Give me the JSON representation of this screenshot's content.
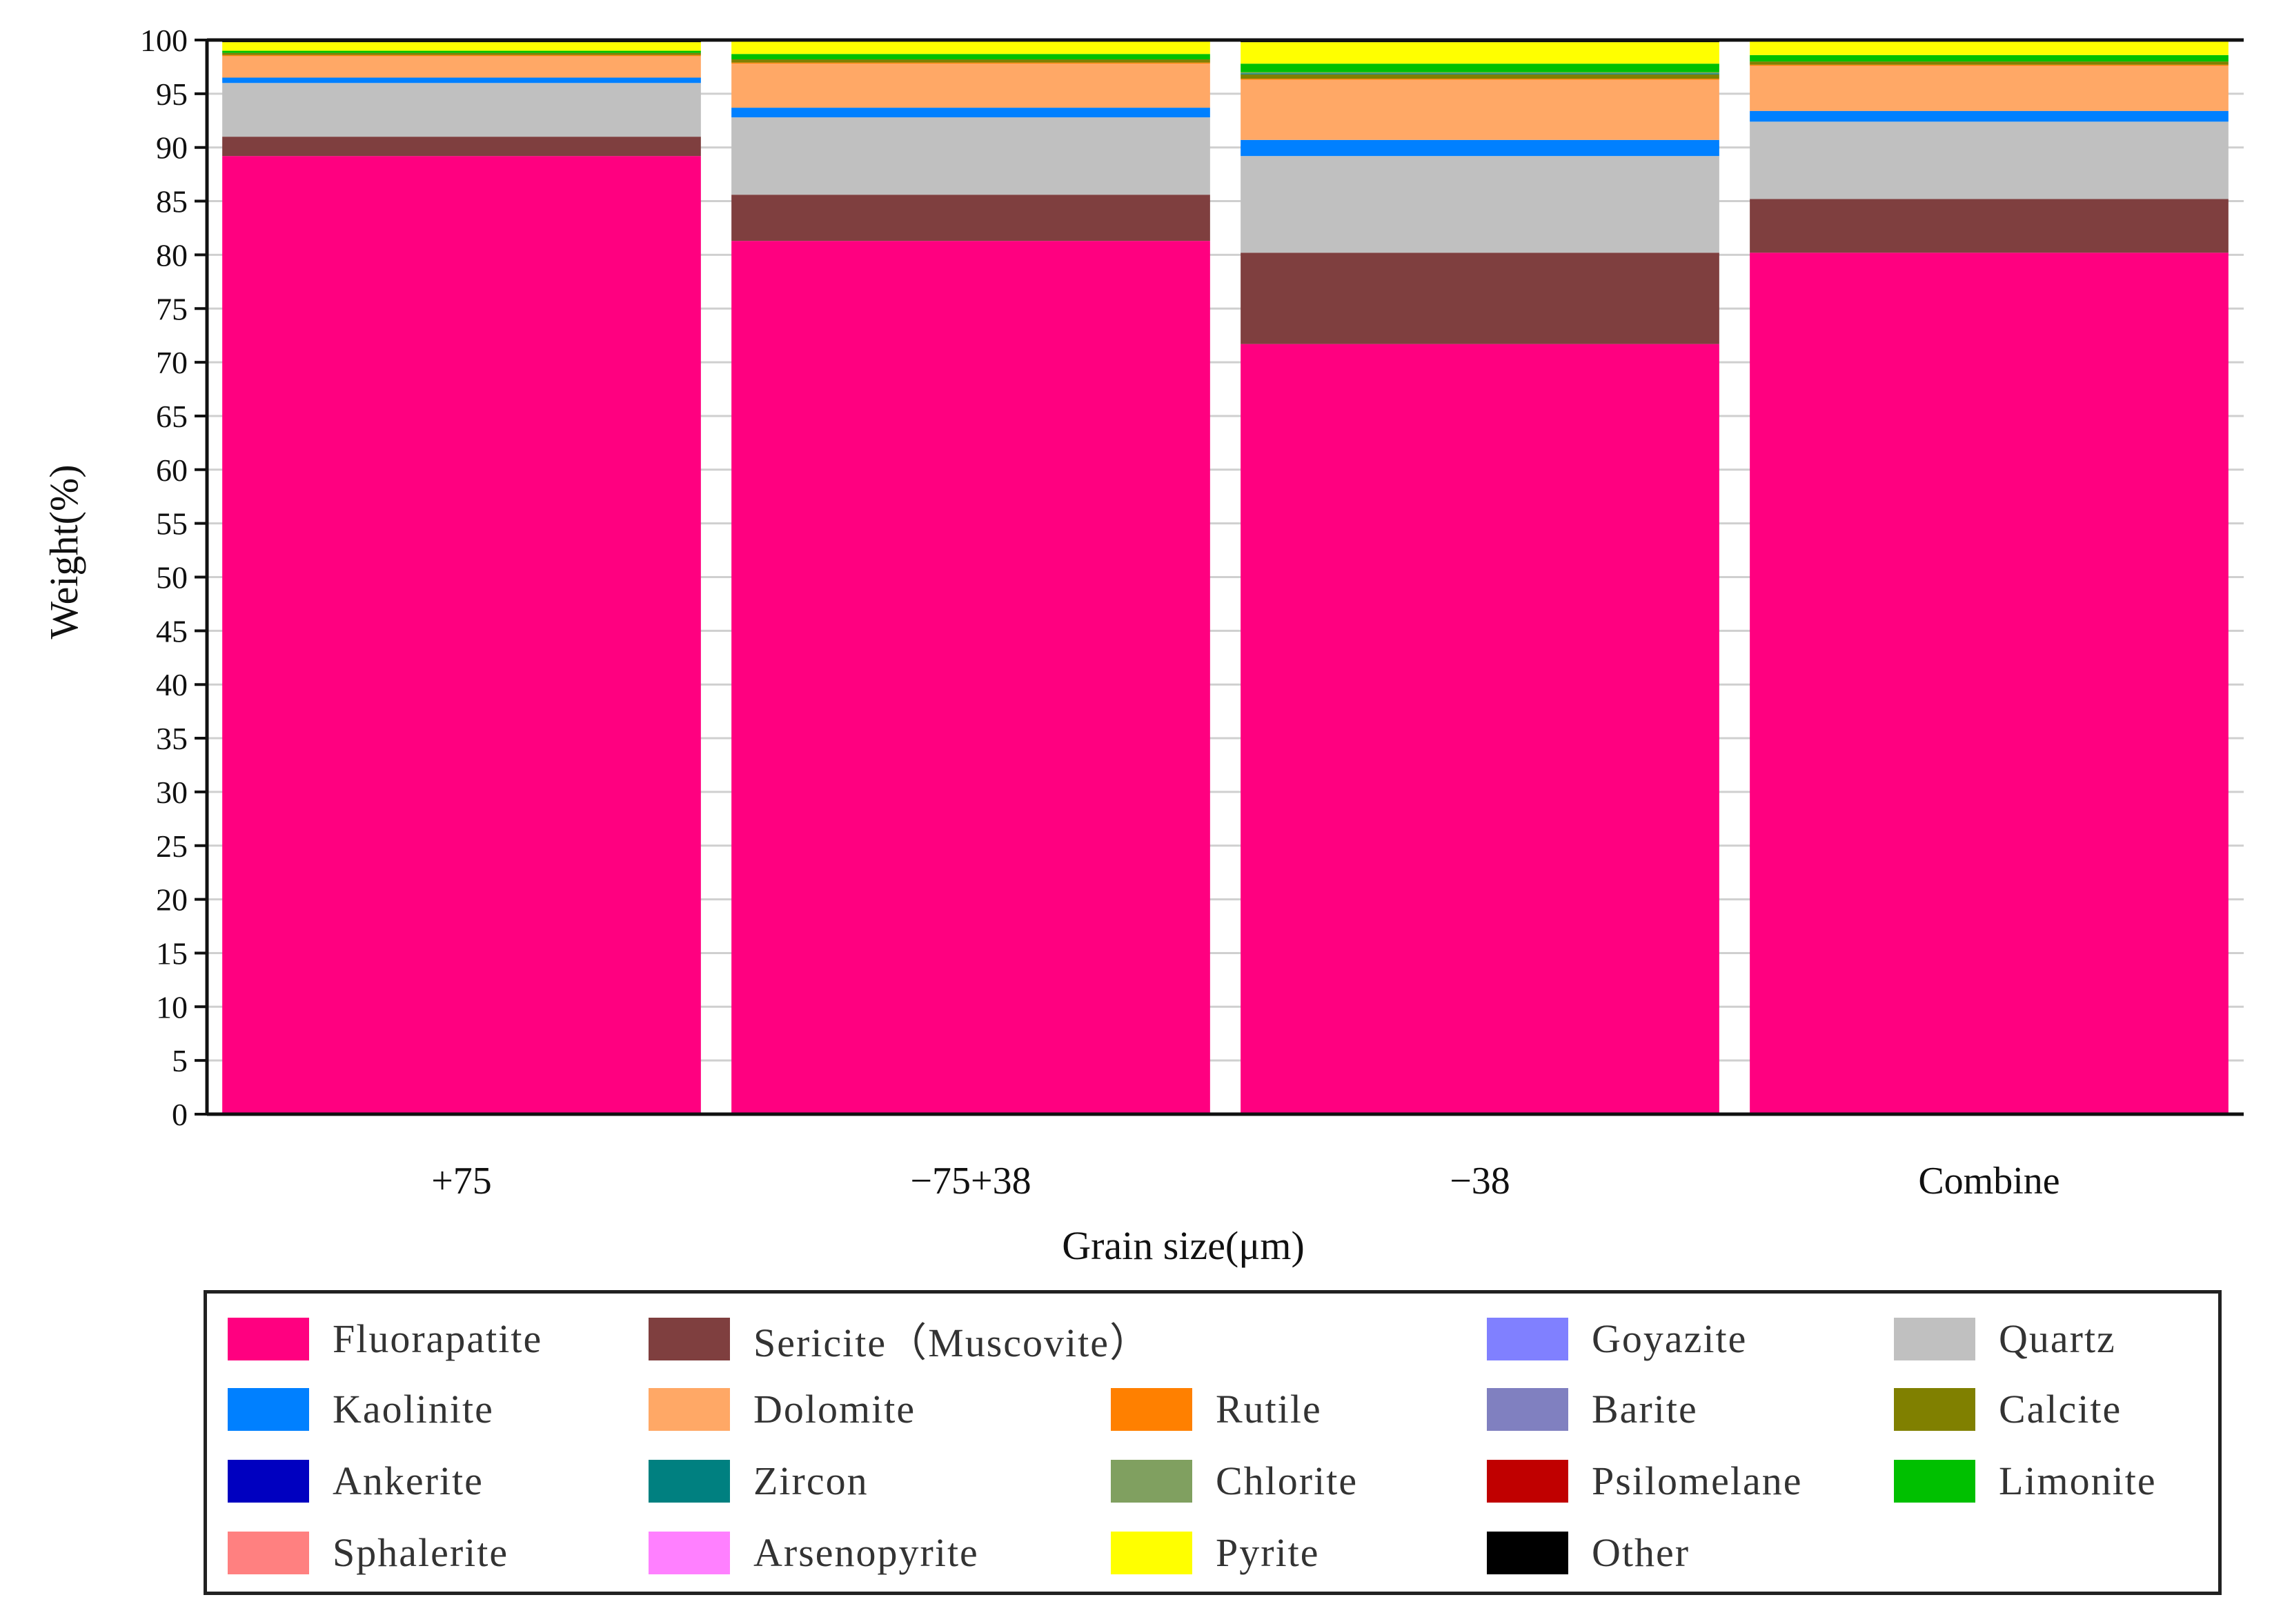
{
  "chart_data": {
    "type": "bar",
    "stacked": true,
    "xlabel": "Grain size(μm)",
    "ylabel": "Weight(%)",
    "ylim": [
      0,
      100
    ],
    "yticks": [
      0,
      5,
      10,
      15,
      20,
      25,
      30,
      35,
      40,
      45,
      50,
      55,
      60,
      65,
      70,
      75,
      80,
      85,
      90,
      95,
      100
    ],
    "grid": true,
    "legend_position": "bottom",
    "categories": [
      "+75",
      "−75+38",
      "−38",
      "Combine"
    ],
    "series": [
      {
        "name": "Fluorapatite",
        "color": "#FF0080",
        "values": [
          89.2,
          81.3,
          71.7,
          80.2
        ]
      },
      {
        "name": "Sericite（Muscovite）",
        "color": "#7F3F3F",
        "values": [
          1.8,
          4.3,
          8.5,
          5.0
        ]
      },
      {
        "name": "Goyazite",
        "color": "#8080FF",
        "values": [
          0.0,
          0.0,
          0.0,
          0.0
        ]
      },
      {
        "name": "Quartz",
        "color": "#C0C0C0",
        "values": [
          5.0,
          7.2,
          9.0,
          7.2
        ]
      },
      {
        "name": "Kaolinite",
        "color": "#0080FF",
        "values": [
          0.5,
          0.9,
          1.5,
          1.0
        ]
      },
      {
        "name": "Dolomite",
        "color": "#FFA866",
        "values": [
          2.0,
          4.1,
          5.6,
          4.2
        ]
      },
      {
        "name": "Rutile",
        "color": "#FF8000",
        "values": [
          0.1,
          0.1,
          0.1,
          0.1
        ]
      },
      {
        "name": "Barite",
        "color": "#8080C0",
        "values": [
          0.0,
          0.0,
          0.0,
          0.0
        ]
      },
      {
        "name": "Calcite",
        "color": "#808000",
        "values": [
          0.2,
          0.3,
          0.4,
          0.3
        ]
      },
      {
        "name": "Ankerite",
        "color": "#0000C0",
        "values": [
          0.0,
          0.0,
          0.0,
          0.0
        ]
      },
      {
        "name": "Zircon",
        "color": "#008080",
        "values": [
          0.0,
          0.0,
          0.1,
          0.0
        ]
      },
      {
        "name": "Chlorite",
        "color": "#80A060",
        "values": [
          0.0,
          0.0,
          0.1,
          0.0
        ]
      },
      {
        "name": "Psilomelane",
        "color": "#C00000",
        "values": [
          0.0,
          0.0,
          0.0,
          0.0
        ]
      },
      {
        "name": "Limonite",
        "color": "#00C000",
        "values": [
          0.2,
          0.5,
          0.8,
          0.6
        ]
      },
      {
        "name": "Sphalerite",
        "color": "#FF8080",
        "values": [
          0.0,
          0.0,
          0.0,
          0.0
        ]
      },
      {
        "name": "Arsenopyrite",
        "color": "#FF80FF",
        "values": [
          0.0,
          0.0,
          0.0,
          0.0
        ]
      },
      {
        "name": "Pyrite",
        "color": "#FFFF00",
        "values": [
          0.8,
          1.2,
          2.0,
          1.3
        ]
      },
      {
        "name": "Other",
        "color": "#000000",
        "values": [
          0.2,
          0.1,
          0.2,
          0.1
        ]
      }
    ]
  },
  "legend": {
    "rows": [
      [
        "Fluorapatite",
        "Sericite（Muscovite）",
        "Goyazite",
        "Quartz"
      ],
      [
        "Kaolinite",
        "Dolomite",
        "Rutile",
        "Barite",
        "Calcite"
      ],
      [
        "Ankerite",
        "Zircon",
        "Chlorite",
        "Psilomelane",
        "Limonite"
      ],
      [
        "Sphalerite",
        "Arsenopyrite",
        "Pyrite",
        "Other"
      ]
    ]
  }
}
